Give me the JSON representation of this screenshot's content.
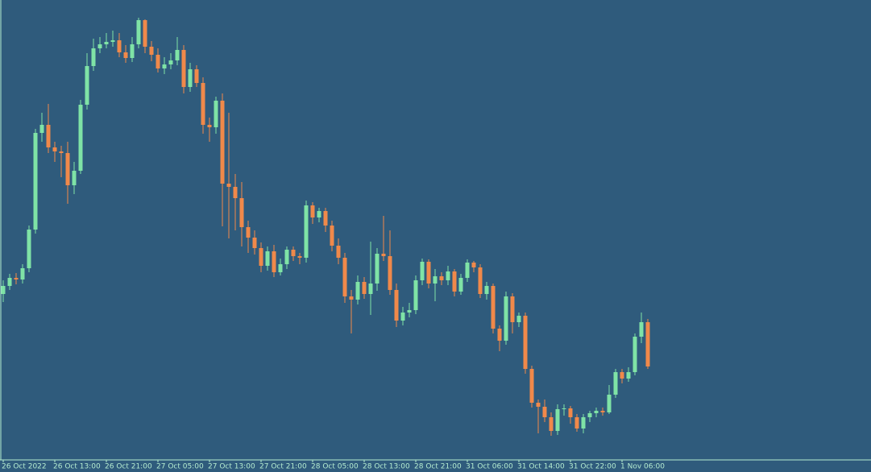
{
  "chart_data": {
    "type": "candlestick",
    "categories": [
      "26 Oct 2022",
      null,
      null,
      null,
      null,
      null,
      null,
      null,
      "26 Oct 13:00",
      null,
      null,
      null,
      null,
      null,
      null,
      null,
      "26 Oct 21:00",
      null,
      null,
      null,
      null,
      null,
      null,
      null,
      "27 Oct 05:00",
      null,
      null,
      null,
      null,
      null,
      null,
      null,
      "27 Oct 13:00",
      null,
      null,
      null,
      null,
      null,
      null,
      null,
      "27 Oct 21:00",
      null,
      null,
      null,
      null,
      null,
      null,
      null,
      "28 Oct 05:00",
      null,
      null,
      null,
      null,
      null,
      null,
      null,
      "28 Oct 13:00",
      null,
      null,
      null,
      null,
      null,
      null,
      null,
      "28 Oct 21:00",
      null,
      null,
      null,
      null,
      null,
      null,
      null,
      "31 Oct 06:00",
      null,
      null,
      null,
      null,
      null,
      null,
      null,
      "31 Oct 14:00",
      null,
      null,
      null,
      null,
      null,
      null,
      null,
      "31 Oct 22:00",
      null,
      null,
      null,
      null,
      null,
      null,
      null,
      "1 Nov 06:00",
      null,
      null,
      null,
      null
    ],
    "open": [
      221,
      231,
      241,
      239,
      253,
      301,
      421,
      431,
      403,
      398,
      396,
      356,
      374,
      456,
      504,
      526,
      531,
      534,
      536,
      521,
      514,
      531,
      561,
      528,
      518,
      501,
      506,
      511,
      524,
      478,
      500,
      483,
      431,
      428,
      461,
      358,
      354,
      340,
      304,
      291,
      278,
      256,
      274,
      248,
      258,
      276,
      268,
      266,
      331,
      316,
      324,
      306,
      281,
      266,
      218,
      214,
      236,
      221,
      234,
      271,
      268,
      226,
      188,
      198,
      201,
      238,
      261,
      234,
      243,
      238,
      249,
      224,
      241,
      260,
      254,
      221,
      231,
      178,
      163,
      218,
      186,
      194,
      128,
      86,
      81,
      68,
      51,
      78,
      79,
      68,
      54,
      68,
      73,
      76,
      74,
      96,
      124,
      116,
      124,
      168,
      186
    ],
    "high": [
      238,
      246,
      247,
      258,
      306,
      426,
      446,
      457,
      410,
      405,
      410,
      385,
      462,
      520,
      538,
      540,
      545,
      548,
      545,
      530,
      540,
      564,
      562,
      535,
      526,
      515,
      520,
      540,
      530,
      508,
      505,
      490,
      440,
      466,
      470,
      446,
      370,
      360,
      312,
      300,
      285,
      280,
      282,
      265,
      280,
      280,
      272,
      337,
      335,
      328,
      328,
      312,
      290,
      272,
      226,
      244,
      242,
      286,
      278,
      318,
      300,
      234,
      205,
      210,
      244,
      265,
      264,
      252,
      248,
      256,
      252,
      246,
      264,
      262,
      258,
      236,
      234,
      182,
      224,
      222,
      198,
      198,
      132,
      90,
      90,
      74,
      84,
      84,
      82,
      72,
      72,
      76,
      80,
      80,
      108,
      128,
      128,
      130,
      172,
      198,
      190
    ],
    "low": [
      211,
      226,
      233,
      234,
      248,
      296,
      410,
      396,
      385,
      366,
      333,
      345,
      370,
      450,
      498,
      520,
      526,
      528,
      515,
      508,
      509,
      526,
      520,
      510,
      496,
      494,
      500,
      505,
      470,
      472,
      478,
      420,
      410,
      420,
      305,
      290,
      300,
      280,
      272,
      270,
      248,
      250,
      242,
      244,
      252,
      262,
      258,
      260,
      308,
      310,
      298,
      274,
      258,
      210,
      172,
      208,
      215,
      195,
      225,
      262,
      220,
      180,
      182,
      192,
      196,
      232,
      228,
      212,
      232,
      232,
      218,
      220,
      236,
      248,
      216,
      214,
      172,
      150,
      158,
      172,
      180,
      122,
      80,
      48,
      62,
      45,
      46,
      70,
      60,
      50,
      48,
      62,
      68,
      70,
      72,
      92,
      110,
      112,
      120,
      160,
      128
    ],
    "close": [
      231,
      241,
      239,
      253,
      301,
      421,
      431,
      403,
      398,
      396,
      356,
      374,
      456,
      504,
      526,
      531,
      534,
      536,
      521,
      514,
      531,
      561,
      528,
      518,
      501,
      506,
      511,
      524,
      478,
      500,
      483,
      431,
      428,
      461,
      358,
      354,
      340,
      304,
      291,
      278,
      256,
      274,
      248,
      258,
      276,
      268,
      266,
      331,
      316,
      324,
      306,
      281,
      266,
      218,
      214,
      236,
      221,
      234,
      271,
      268,
      226,
      188,
      198,
      201,
      238,
      261,
      234,
      243,
      238,
      249,
      224,
      241,
      260,
      254,
      221,
      231,
      178,
      163,
      218,
      186,
      194,
      128,
      86,
      81,
      68,
      51,
      78,
      79,
      68,
      54,
      68,
      73,
      76,
      74,
      96,
      124,
      116,
      124,
      168,
      186,
      131
    ],
    "up_color": "#7fe3a6",
    "down_color": "#f0894a",
    "ylim": [
      0,
      586
    ]
  }
}
